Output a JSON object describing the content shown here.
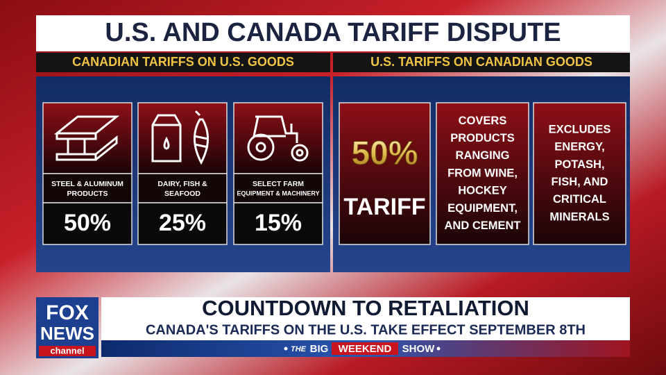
{
  "header": {
    "title": "U.S. AND CANADA TARIFF DISPUTE"
  },
  "sections": [
    {
      "heading": "CANADIAN TARIFFS ON U.S. GOODS",
      "cards": [
        {
          "label": [
            "STEEL & ALUMINUM",
            "PRODUCTS"
          ],
          "rate": "50%"
        },
        {
          "label": [
            "DAIRY, FISH &",
            "SEAFOOD"
          ],
          "rate": "25%"
        },
        {
          "label": [
            "SELECT FARM",
            "EQUIPMENT & MACHINERY"
          ],
          "rate": "15%"
        }
      ]
    },
    {
      "heading": "U.S. TARIFFS ON CANADIAN GOODS",
      "cards": [
        {
          "lines": [
            "50%",
            "TARIFF"
          ]
        },
        {
          "lines": [
            "COVERS",
            "PRODUCTS",
            "RANGING",
            "FROM WINE,",
            "HOCKEY",
            "EQUIPMENT,",
            "AND CEMENT"
          ]
        },
        {
          "lines": [
            "EXCLUDES",
            "ENERGY,",
            "POTASH,",
            "FISH, AND",
            "CRITICAL",
            "MINERALS"
          ]
        }
      ]
    }
  ],
  "lower_third": {
    "logo": [
      "FOX",
      "NEWS",
      "channel"
    ],
    "headline": "COUNTDOWN TO RETALIATION",
    "subheadline": "CANADA'S TARIFFS ON THE U.S. TAKE EFFECT SEPTEMBER 8TH",
    "show": [
      "THE",
      "BIG",
      "WEEKEND",
      "SHOW"
    ]
  }
}
